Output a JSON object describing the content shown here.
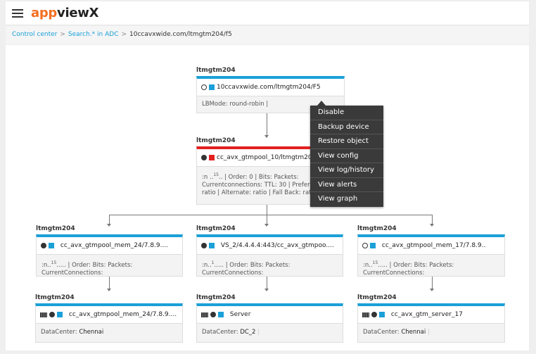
{
  "header": {
    "logo_a": "app",
    "logo_b": "viewX"
  },
  "breadcrumb": {
    "items": [
      "Control center",
      "Search.* in ADC"
    ],
    "current": "10ccavxwide.com/ltmgtm204/f5",
    "sep": ">"
  },
  "nodes": {
    "root": {
      "label": "ltmgtm204",
      "title": "10ccavxwide.com/ltmgtm204/F5",
      "detail": "LBMode: round-robin |"
    },
    "pool": {
      "label": "ltmgtm204",
      "title": "cc_avx_gtmpool_10/ltmgtm204",
      "d1a": ":n ..",
      "d1sup": "15",
      "d1b": ".. | Order: 0 | Bits: Packets:",
      "d2": "Currentconnections: TTL: 30 | Preferred:",
      "d3": "ratio | Alternate: ratio | Fall Back: ratio"
    },
    "m1": {
      "label": "ltmgtm204",
      "title": "cc_avx_gtmpool_mem_24/7.8.9....",
      "da": ":n..",
      "dsup": "15",
      "db": "..... | Order: Bits: Packets:",
      "d2": "CurrentConnections:"
    },
    "m2": {
      "label": "ltmgtm204",
      "title": "VS_2/4.4.4.4:443/cc_avx_gtmpoo....",
      "da": ":n..",
      "dsup": "1",
      "db": "..... | Order: Bits: Packets:",
      "d2": "CurrentConnections:"
    },
    "m3": {
      "label": "ltmgtm204",
      "title": "cc_avx_gtmpool_mem_17/7.8.9..",
      "da": ":n..",
      "dsup": "15",
      "db": "..... | Order: Bits: Packets:",
      "d2": "CurrentConnections:"
    },
    "s1": {
      "label": "ltmgtm204",
      "title": "cc_avx_gtmpool_mem_24/7.8.9....",
      "key": "DataCenter:",
      "val": "Chennai",
      "tail": ""
    },
    "s2": {
      "label": "ltmgtm204",
      "title": "Server",
      "key": "DataCenter:",
      "val": "DC_2",
      "tail": "|"
    },
    "s3": {
      "label": "ltmgtm204",
      "title": "cc_avx_gtm_server_17",
      "key": "DataCenter:",
      "val": "Chennai",
      "tail": "|"
    }
  },
  "context_menu": [
    "Disable",
    "Backup device",
    "Restore object",
    "View config",
    "View log/history",
    "View alerts",
    "View graph"
  ],
  "colors": {
    "accent": "#1ba0d8",
    "error": "#e32020",
    "brand": "#f36f21"
  }
}
